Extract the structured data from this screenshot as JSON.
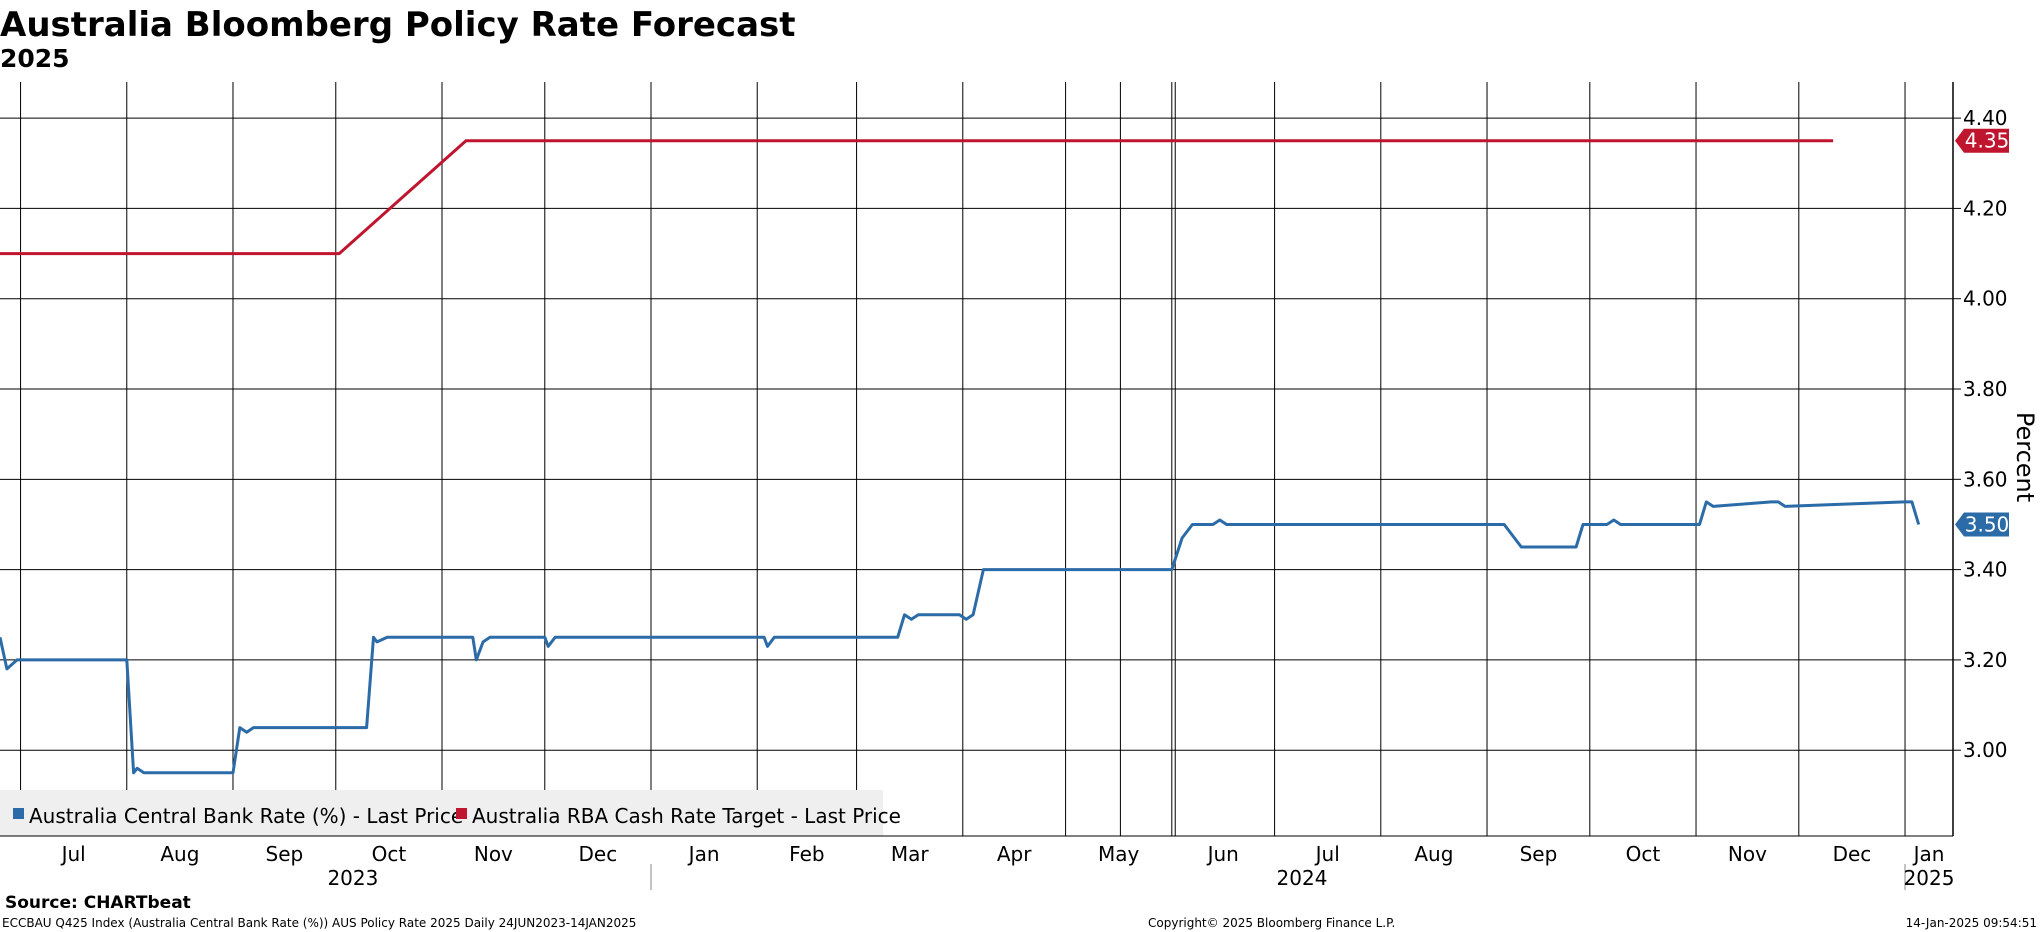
{
  "header": {
    "title": "Australia Bloomberg Policy Rate Forecast",
    "subtitle": "2025"
  },
  "footer": {
    "source": "Source: CHARTbeat",
    "description": "ECCBAU Q425 Index (Australia Central Bank Rate (%)) AUS Policy Rate 2025  Daily 24JUN2023-14JAN2025",
    "copyright": "Copyright© 2025 Bloomberg Finance L.P.",
    "timestamp": "14-Jan-2025 09:54:51"
  },
  "colors": {
    "central_bank_rate": "#2B6BA8",
    "cash_rate_target": "#C0152F",
    "grid": "#000000",
    "legend_background": "#EFEFEF"
  },
  "chart_data": {
    "type": "line",
    "title": "Australia Bloomberg Policy Rate Forecast",
    "subtitle": "2025",
    "ylabel": "Percent",
    "ylim": [
      2.81,
      4.48
    ],
    "yticks": [
      "4.40",
      "4.20",
      "4.00",
      "3.80",
      "3.60",
      "3.40",
      "3.20",
      "3.00"
    ],
    "y_axis_side": "right",
    "grid": true,
    "legend_position": "bottom-left",
    "xlim": [
      "2023-06-24",
      "2025-01-14"
    ],
    "x_month_ticks": [
      {
        "date": "2023-06-30",
        "label": "Jul"
      },
      {
        "date": "2023-07-31",
        "label": "Aug"
      },
      {
        "date": "2023-08-31",
        "label": "Sep"
      },
      {
        "date": "2023-09-30",
        "label": "Oct"
      },
      {
        "date": "2023-10-31",
        "label": "Nov"
      },
      {
        "date": "2023-11-30",
        "label": "Dec"
      },
      {
        "date": "2023-12-31",
        "label": "Jan"
      },
      {
        "date": "2024-01-31",
        "label": "Feb"
      },
      {
        "date": "2024-02-29",
        "label": "Mar"
      },
      {
        "date": "2024-03-31",
        "label": "Apr"
      },
      {
        "date": "2024-04-30",
        "label": "May"
      },
      {
        "date": "2024-05-31",
        "label": "Jun"
      },
      {
        "date": "2024-06-30",
        "label": "Jul"
      },
      {
        "date": "2024-07-31",
        "label": "Aug"
      },
      {
        "date": "2024-08-31",
        "label": "Sep"
      },
      {
        "date": "2024-09-30",
        "label": "Oct"
      },
      {
        "date": "2024-10-31",
        "label": "Nov"
      },
      {
        "date": "2024-11-30",
        "label": "Dec"
      },
      {
        "date": "2024-12-31",
        "label": "Jan"
      }
    ],
    "x_extra_gridlines": [
      "2024-05-16",
      "2024-06-01"
    ],
    "x_year_labels": [
      {
        "date": "2023-10-05",
        "label": "2023"
      },
      {
        "date": "2024-07-08",
        "label": "2024"
      },
      {
        "date": "2025-01-07",
        "label": "2025"
      }
    ],
    "x_year_separators": [
      "2023-12-31",
      "2024-12-31"
    ],
    "series": [
      {
        "name": "Australia Central Bank Rate (%) - Last Price",
        "color": "#2B6BA8",
        "last_value": "3.50",
        "x": [
          "2023-06-24",
          "2023-06-26",
          "2023-06-29",
          "2023-07-31",
          "2023-08-02",
          "2023-08-03",
          "2023-08-05",
          "2023-08-31",
          "2023-09-02",
          "2023-09-04",
          "2023-09-06",
          "2023-10-09",
          "2023-10-11",
          "2023-10-12",
          "2023-10-15",
          "2023-11-09",
          "2023-11-10",
          "2023-11-12",
          "2023-11-14",
          "2023-11-30",
          "2023-12-01",
          "2023-12-03",
          "2024-02-02",
          "2024-02-03",
          "2024-02-05",
          "2024-03-12",
          "2024-03-14",
          "2024-03-16",
          "2024-03-18",
          "2024-03-30",
          "2024-04-01",
          "2024-04-03",
          "2024-04-06",
          "2024-05-31",
          "2024-06-03",
          "2024-06-06",
          "2024-06-12",
          "2024-06-14",
          "2024-06-16",
          "2024-09-05",
          "2024-09-10",
          "2024-09-26",
          "2024-09-28",
          "2024-10-05",
          "2024-10-07",
          "2024-10-09",
          "2024-11-01",
          "2024-11-03",
          "2024-11-05",
          "2024-11-22",
          "2024-11-24",
          "2024-11-26",
          "2024-12-31",
          "2025-01-02",
          "2025-01-04"
        ],
        "y": [
          3.25,
          3.18,
          3.2,
          3.2,
          2.95,
          2.96,
          2.95,
          2.95,
          3.05,
          3.04,
          3.05,
          3.05,
          3.25,
          3.24,
          3.25,
          3.25,
          3.2,
          3.24,
          3.25,
          3.25,
          3.23,
          3.25,
          3.25,
          3.23,
          3.25,
          3.25,
          3.3,
          3.29,
          3.3,
          3.3,
          3.29,
          3.3,
          3.4,
          3.4,
          3.47,
          3.5,
          3.5,
          3.51,
          3.5,
          3.5,
          3.45,
          3.45,
          3.5,
          3.5,
          3.51,
          3.5,
          3.5,
          3.55,
          3.54,
          3.55,
          3.55,
          3.54,
          3.55,
          3.55,
          3.5
        ]
      },
      {
        "name": "Australia RBA Cash Rate Target - Last Price",
        "color": "#C0152F",
        "last_value": "4.35",
        "x": [
          "2023-06-24",
          "2023-10-01",
          "2023-11-07",
          "2024-12-10"
        ],
        "y": [
          4.1,
          4.1,
          4.35,
          4.35
        ]
      }
    ]
  }
}
